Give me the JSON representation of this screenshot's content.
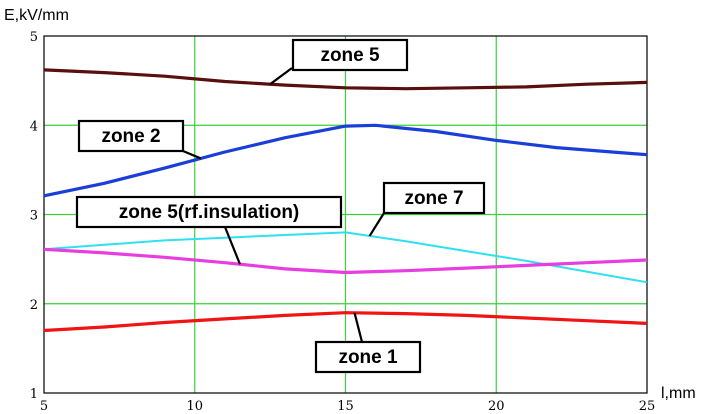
{
  "chart_data": {
    "type": "line",
    "ylabel": "E,kV/mm",
    "xlabel": "l,mm",
    "xlim": [
      5,
      25
    ],
    "ylim": [
      1,
      5
    ],
    "xticks": [
      5,
      10,
      15,
      20,
      25
    ],
    "yticks": [
      1,
      2,
      3,
      4,
      5
    ],
    "grid": true,
    "series": [
      {
        "name": "zone 5",
        "color": "#5a0f0f",
        "x": [
          5,
          7,
          9,
          11,
          13,
          15,
          17,
          19,
          21,
          23,
          25
        ],
        "y": [
          4.62,
          4.59,
          4.55,
          4.49,
          4.45,
          4.42,
          4.41,
          4.42,
          4.43,
          4.46,
          4.48
        ]
      },
      {
        "name": "zone 2",
        "color": "#1a3fd8",
        "x": [
          5,
          7,
          9,
          11,
          13,
          15,
          16,
          18,
          20,
          22,
          25
        ],
        "y": [
          3.21,
          3.35,
          3.52,
          3.7,
          3.86,
          3.99,
          4.0,
          3.93,
          3.83,
          3.75,
          3.67
        ]
      },
      {
        "name": "zone 7",
        "color": "#2fe0f0",
        "x": [
          5,
          7,
          9,
          11,
          13,
          15,
          17,
          19,
          21,
          23,
          25
        ],
        "y": [
          2.61,
          2.66,
          2.71,
          2.74,
          2.77,
          2.8,
          2.7,
          2.59,
          2.48,
          2.36,
          2.24
        ]
      },
      {
        "name": "zone 5(rf.insulation)",
        "color": "#e83ee0",
        "x": [
          5,
          7,
          9,
          11,
          13,
          15,
          17,
          19,
          21,
          23,
          25
        ],
        "y": [
          2.61,
          2.57,
          2.52,
          2.46,
          2.39,
          2.35,
          2.37,
          2.4,
          2.43,
          2.46,
          2.49
        ]
      },
      {
        "name": "zone 1",
        "color": "#f01414",
        "x": [
          5,
          7,
          9,
          11,
          13,
          15,
          17,
          19,
          21,
          23,
          25
        ],
        "y": [
          1.7,
          1.74,
          1.79,
          1.83,
          1.87,
          1.9,
          1.89,
          1.87,
          1.84,
          1.81,
          1.78
        ]
      }
    ],
    "annotations": [
      {
        "text": "zone 5",
        "series": "zone 5"
      },
      {
        "text": "zone 2",
        "series": "zone 2"
      },
      {
        "text": "zone 7",
        "series": "zone 7"
      },
      {
        "text": "zone 5(rf.insulation)",
        "series": "zone 5(rf.insulation)"
      },
      {
        "text": "zone 1",
        "series": "zone 1"
      }
    ]
  }
}
